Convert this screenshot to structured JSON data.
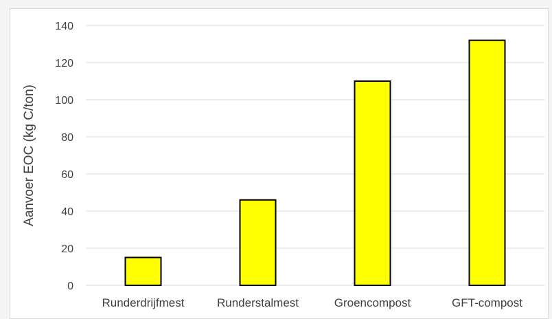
{
  "chart_data": {
    "type": "bar",
    "title": "",
    "xlabel": "",
    "ylabel": "Aanvoer EOC (kg C/ton)",
    "categories": [
      "Runderdrijfmest",
      "Runderstalmest",
      "Groencompost",
      "GFT-compost"
    ],
    "values": [
      15,
      46,
      110,
      132
    ],
    "ylim": [
      0,
      140
    ],
    "yticks": [
      0,
      20,
      40,
      60,
      80,
      100,
      120,
      140
    ],
    "grid": true,
    "legend": "none",
    "colors": {
      "bar_fill": "#ffff00",
      "bar_stroke": "#000000",
      "grid": "#d9d9d9",
      "text": "#404040"
    }
  }
}
